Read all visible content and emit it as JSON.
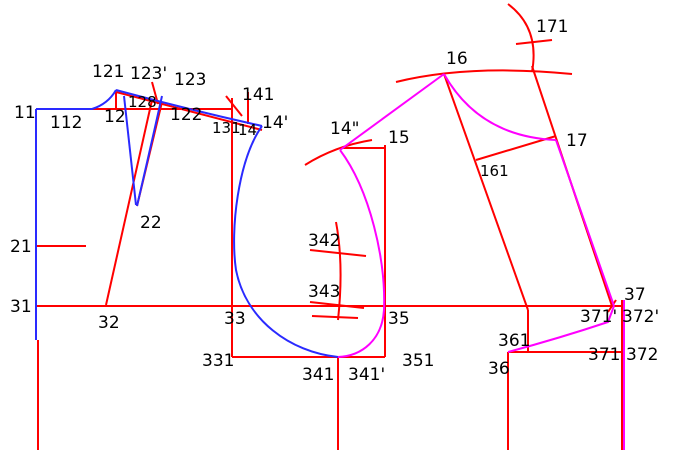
{
  "colors": {
    "construction": "#ff0000",
    "front_curve": "#2a2aff",
    "sleeve_curve": "#ff00ff",
    "label": "#000000",
    "background": "#ffffff"
  },
  "points": {
    "p11": "11",
    "p112": "112",
    "p12": "12",
    "p121": "121",
    "p123a": "123'",
    "p123b": "123",
    "p128": "128",
    "p122": "122",
    "p131": "131",
    "p14": "14",
    "p14p": "14'",
    "p141": "141",
    "p21": "21",
    "p22": "22",
    "p31": "31",
    "p32": "32",
    "p33": "33",
    "p331": "331",
    "p14pp": "14\"",
    "p15": "15",
    "p342": "342",
    "p343": "343",
    "p35": "35",
    "p341": "341",
    "p341p": "341'",
    "p351": "351",
    "p16": "16",
    "p171": "171",
    "p17": "17",
    "p161": "161",
    "p37": "37",
    "p371p": "371'",
    "p372p": "372'",
    "p361": "361",
    "p36": "36",
    "p371": "371",
    "p372": "372"
  }
}
